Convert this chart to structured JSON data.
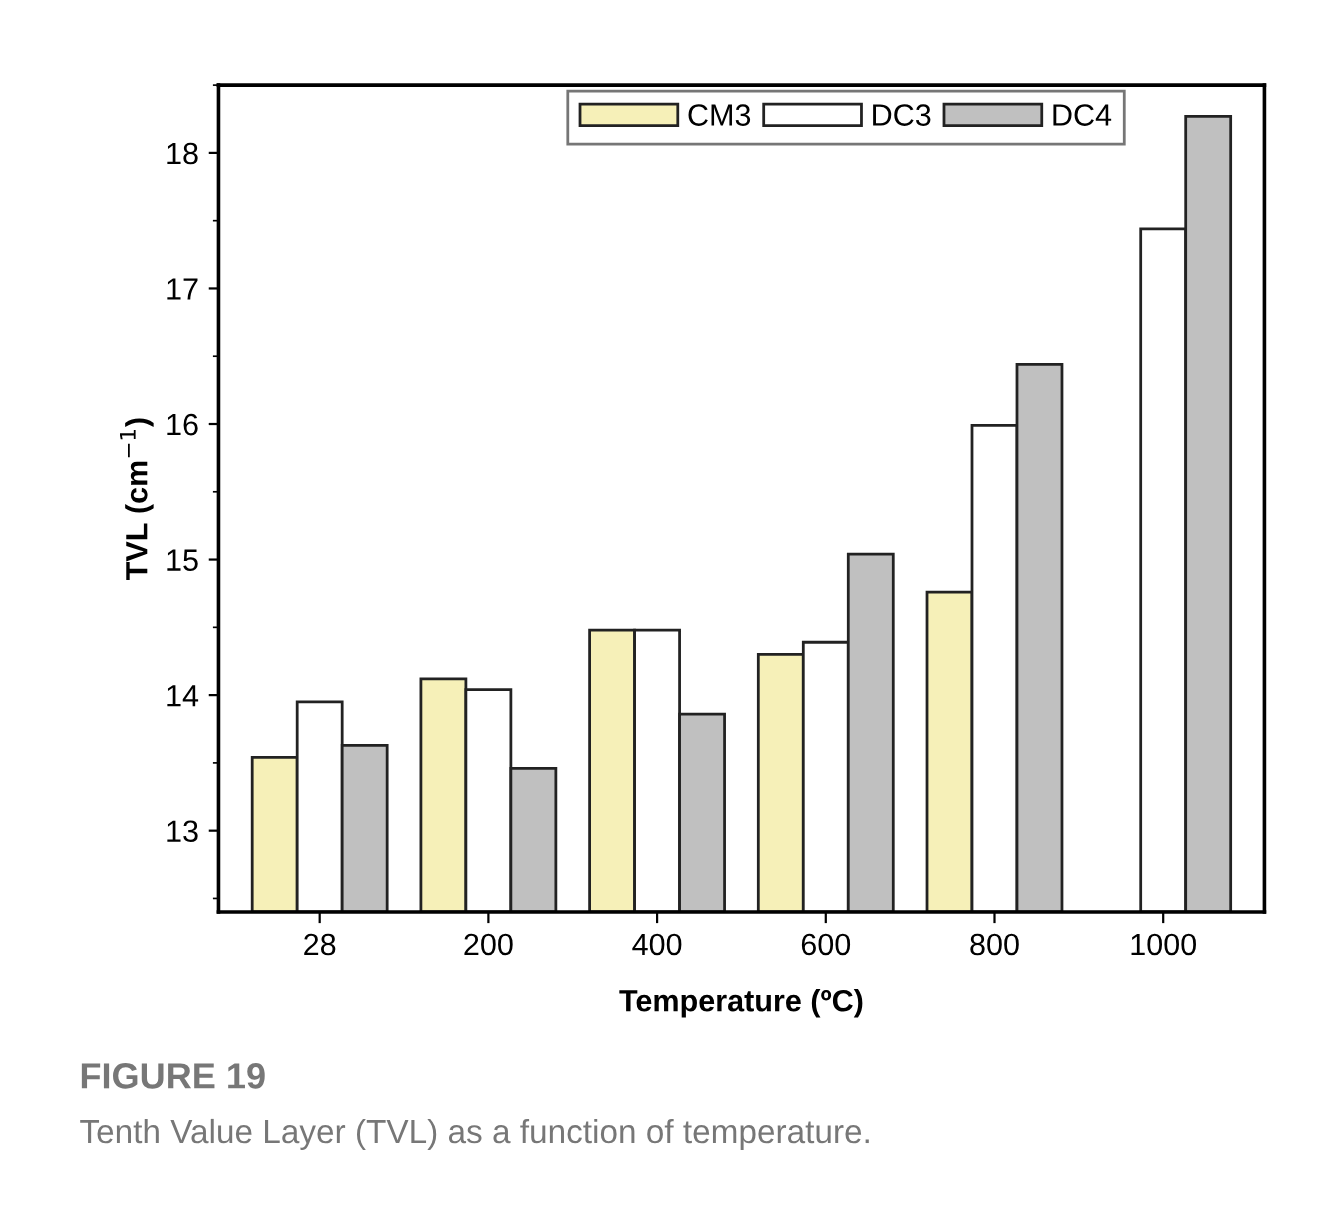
{
  "chart_data": {
    "type": "bar",
    "xlabel": "Temperature (ºC)",
    "ylabel": "TVL (cm$^{−1}$)",
    "categories": [
      "28",
      "200",
      "400",
      "600",
      "800",
      "1000"
    ],
    "series": [
      {
        "name": "CM3",
        "color": "#f6f0b8",
        "values": [
          13.54,
          14.12,
          14.48,
          14.3,
          14.76,
          null
        ]
      },
      {
        "name": "DC3",
        "color": "#ffffff",
        "values": [
          13.95,
          14.04,
          14.48,
          14.39,
          15.99,
          17.44
        ]
      },
      {
        "name": "DC4",
        "color": "#c0c0c0",
        "values": [
          13.63,
          13.46,
          13.86,
          15.04,
          16.44,
          18.27
        ]
      }
    ],
    "ylim": [
      12.4,
      18.5
    ],
    "yticks": [
      13,
      14,
      15,
      16,
      17,
      18
    ],
    "grid": false,
    "legend": "top",
    "annotations": [
      "FIGURE 19",
      "Tenth Value Layer (TVL) as a function of temperature."
    ]
  }
}
